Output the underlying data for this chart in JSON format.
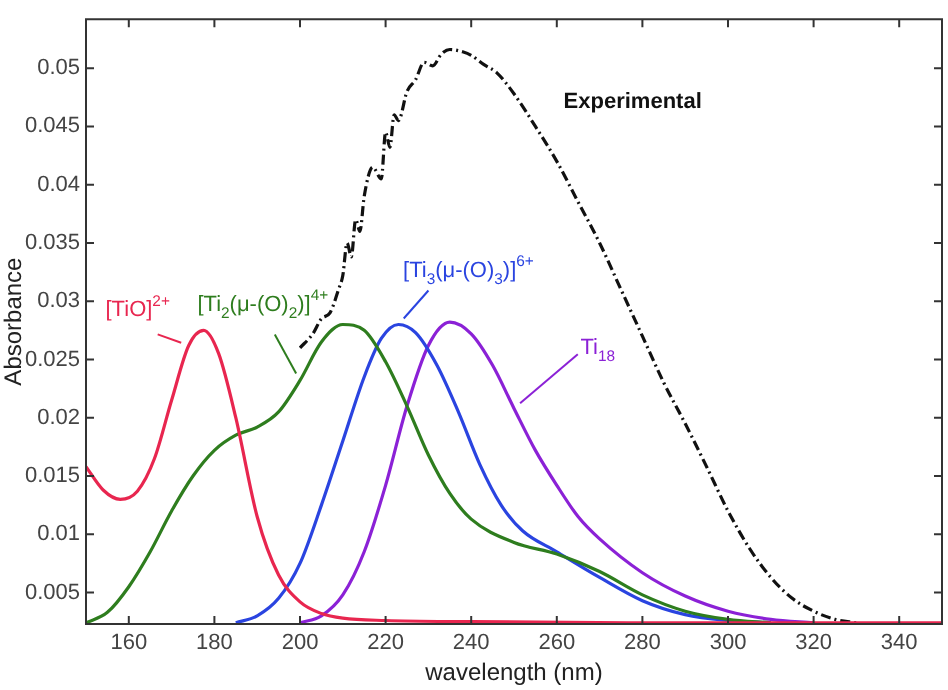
{
  "chart_data": {
    "type": "line",
    "xlabel": "wavelength (nm)",
    "ylabel": "Absorbance",
    "xlim": [
      150,
      350
    ],
    "xticks": [
      160,
      180,
      200,
      220,
      240,
      260,
      280,
      300,
      320,
      340
    ],
    "ylim": [
      0.0023,
      0.0542
    ],
    "yticks": [
      0.005,
      0.01,
      0.015,
      0.02,
      0.025,
      0.03,
      0.035,
      0.04,
      0.045,
      0.05
    ],
    "grid": false,
    "legend": false,
    "marker": "none",
    "series": [
      {
        "name": "[TiO]$^{2+}$",
        "color": "#e8264f",
        "line_style": "solid",
        "x": [
          150,
          154,
          158,
          162,
          166,
          170,
          174,
          177.5,
          181,
          185,
          190,
          195,
          200,
          205,
          210,
          220,
          240,
          280,
          350
        ],
        "values": [
          0.0158,
          0.0138,
          0.013,
          0.0137,
          0.0165,
          0.0215,
          0.0262,
          0.0275,
          0.0255,
          0.02,
          0.0115,
          0.0065,
          0.0042,
          0.0032,
          0.0028,
          0.0026,
          0.0025,
          0.0024,
          0.0024
        ]
      },
      {
        "name": "[Ti$_{2}$(μ-(O)$_{2}$)]$^{4+}$",
        "color": "#2e7d1e",
        "line_style": "solid",
        "x": [
          150,
          155,
          160,
          165,
          170,
          175,
          180,
          185,
          190,
          195,
          200,
          205,
          210,
          215,
          220,
          225,
          230,
          235,
          240,
          250,
          260,
          270,
          280,
          290,
          300,
          310
        ],
        "values": [
          0.0024,
          0.0033,
          0.0055,
          0.0085,
          0.012,
          0.015,
          0.0172,
          0.0185,
          0.0192,
          0.0205,
          0.0232,
          0.0265,
          0.028,
          0.0275,
          0.0248,
          0.021,
          0.0168,
          0.0135,
          0.0113,
          0.0093,
          0.0083,
          0.0068,
          0.0048,
          0.0034,
          0.0027,
          0.0024
        ]
      },
      {
        "name": "[Ti$_{3}$(μ-(O)$_{3}$)]$^{6+}$",
        "color": "#2a44e0",
        "line_style": "solid",
        "x": [
          185,
          190,
          195,
          200,
          205,
          210,
          215,
          219,
          223,
          227,
          232,
          237,
          242,
          247,
          252,
          260,
          270,
          280,
          290,
          300,
          310
        ],
        "values": [
          0.0024,
          0.003,
          0.0045,
          0.0075,
          0.0125,
          0.018,
          0.0235,
          0.0268,
          0.028,
          0.0273,
          0.0245,
          0.0205,
          0.016,
          0.0125,
          0.0103,
          0.0085,
          0.0063,
          0.0043,
          0.0031,
          0.0026,
          0.0024
        ]
      },
      {
        "name": "Ti$_{18}$",
        "color": "#8b21d6",
        "line_style": "solid",
        "x": [
          200,
          205,
          210,
          215,
          220,
          225,
          230,
          235,
          240,
          245,
          250,
          255,
          260,
          265,
          270,
          280,
          290,
          300,
          310,
          320
        ],
        "values": [
          0.0024,
          0.003,
          0.0048,
          0.0085,
          0.0142,
          0.021,
          0.0262,
          0.0282,
          0.0272,
          0.0245,
          0.0208,
          0.0172,
          0.0142,
          0.0115,
          0.0096,
          0.0067,
          0.0047,
          0.0034,
          0.0027,
          0.0024
        ]
      },
      {
        "name": "Experimental",
        "color": "#111111",
        "line_style": "dashed",
        "x": [
          200,
          203,
          205,
          207,
          209,
          210,
          211,
          212,
          213,
          214,
          215,
          217,
          219,
          220,
          221,
          222,
          223,
          225,
          227,
          229,
          231,
          233,
          235,
          238,
          240,
          243,
          246,
          250,
          255,
          260,
          265,
          270,
          275,
          280,
          285,
          290,
          295,
          300,
          305,
          310,
          315,
          320,
          325,
          330
        ],
        "values": [
          0.026,
          0.0272,
          0.0285,
          0.029,
          0.031,
          0.0322,
          0.035,
          0.0338,
          0.037,
          0.036,
          0.039,
          0.0415,
          0.0405,
          0.0445,
          0.0432,
          0.046,
          0.0455,
          0.048,
          0.049,
          0.0505,
          0.0502,
          0.0512,
          0.0516,
          0.0514,
          0.0511,
          0.0503,
          0.0496,
          0.0478,
          0.045,
          0.042,
          0.0385,
          0.035,
          0.031,
          0.027,
          0.023,
          0.0195,
          0.0158,
          0.012,
          0.0088,
          0.0063,
          0.0045,
          0.0034,
          0.0027,
          0.0024
        ]
      }
    ]
  }
}
